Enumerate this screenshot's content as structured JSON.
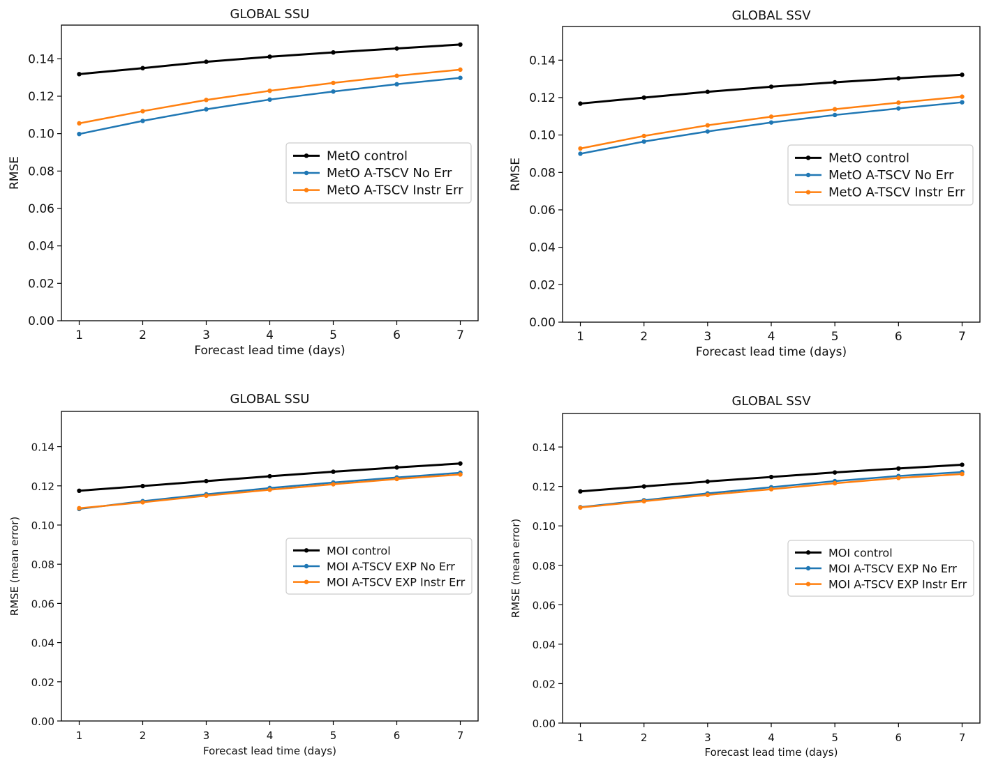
{
  "chart_data": [
    {
      "type": "line",
      "title": "GLOBAL SSU",
      "xlabel": "Forecast lead time (days)",
      "ylabel": "RMSE",
      "x": [
        1,
        2,
        3,
        4,
        5,
        6,
        7
      ],
      "xticks": [
        "1",
        "2",
        "3",
        "4",
        "5",
        "6",
        "7"
      ],
      "yticks": [
        "0.00",
        "0.02",
        "0.04",
        "0.06",
        "0.08",
        "0.10",
        "0.12",
        "0.14"
      ],
      "ylim": [
        0,
        0.158
      ],
      "legend_position": "center-right",
      "series": [
        {
          "name": "MetO control",
          "color": "#000000",
          "values": [
            0.1318,
            0.135,
            0.1384,
            0.1411,
            0.1434,
            0.1455,
            0.1476
          ]
        },
        {
          "name": "MetO A-TSCV No Err",
          "color": "#1f77b4",
          "values": [
            0.0998,
            0.1068,
            0.113,
            0.1182,
            0.1225,
            0.1264,
            0.1298
          ]
        },
        {
          "name": "MetO A-TSCV Instr Err",
          "color": "#ff7f0e",
          "values": [
            0.1055,
            0.112,
            0.118,
            0.1229,
            0.1271,
            0.1309,
            0.1342
          ]
        }
      ]
    },
    {
      "type": "line",
      "title": "GLOBAL SSV",
      "xlabel": "Forecast lead time (days)",
      "ylabel": "RMSE",
      "x": [
        1,
        2,
        3,
        4,
        5,
        6,
        7
      ],
      "xticks": [
        "1",
        "2",
        "3",
        "4",
        "5",
        "6",
        "7"
      ],
      "yticks": [
        "0.00",
        "0.02",
        "0.04",
        "0.06",
        "0.08",
        "0.10",
        "0.12",
        "0.14"
      ],
      "ylim": [
        0,
        0.158
      ],
      "legend_position": "center-right",
      "series": [
        {
          "name": "MetO control",
          "color": "#000000",
          "values": [
            0.1168,
            0.12,
            0.1231,
            0.1258,
            0.1282,
            0.1303,
            0.1322
          ]
        },
        {
          "name": "MetO A-TSCV No Err",
          "color": "#1f77b4",
          "values": [
            0.09,
            0.0965,
            0.1019,
            0.1067,
            0.1107,
            0.1142,
            0.1175
          ]
        },
        {
          "name": "MetO A-TSCV Instr Err",
          "color": "#ff7f0e",
          "values": [
            0.0928,
            0.0995,
            0.1052,
            0.1098,
            0.1138,
            0.1173,
            0.1205
          ]
        }
      ]
    },
    {
      "type": "line",
      "title": "GLOBAL SSU",
      "xlabel": "Forecast lead time (days)",
      "ylabel": "RMSE (mean error)",
      "x": [
        1,
        2,
        3,
        4,
        5,
        6,
        7
      ],
      "xticks": [
        "1",
        "2",
        "3",
        "4",
        "5",
        "6",
        "7"
      ],
      "yticks": [
        "0.00",
        "0.02",
        "0.04",
        "0.06",
        "0.08",
        "0.10",
        "0.12",
        "0.14"
      ],
      "ylim": [
        0,
        0.158
      ],
      "legend_position": "center-right",
      "series": [
        {
          "name": "MOI control",
          "color": "#000000",
          "values": [
            0.1175,
            0.1199,
            0.1224,
            0.1249,
            0.1272,
            0.1294,
            0.1314
          ]
        },
        {
          "name": "MOI A-TSCV EXP No Err",
          "color": "#1f77b4",
          "values": [
            0.1082,
            0.1122,
            0.1157,
            0.1189,
            0.1217,
            0.1243,
            0.1267
          ]
        },
        {
          "name": "MOI A-TSCV EXP Instr Err",
          "color": "#ff7f0e",
          "values": [
            0.1086,
            0.1116,
            0.115,
            0.118,
            0.1208,
            0.1235,
            0.1258
          ]
        }
      ]
    },
    {
      "type": "line",
      "title": "GLOBAL SSV",
      "xlabel": "Forecast lead time (days)",
      "ylabel": "RMSE (mean error)",
      "x": [
        1,
        2,
        3,
        4,
        5,
        6,
        7
      ],
      "xticks": [
        "1",
        "2",
        "3",
        "4",
        "5",
        "6",
        "7"
      ],
      "yticks": [
        "0.00",
        "0.02",
        "0.04",
        "0.06",
        "0.08",
        "0.10",
        "0.12",
        "0.14"
      ],
      "ylim": [
        0,
        0.157
      ],
      "legend_position": "center-right",
      "series": [
        {
          "name": "MOI control",
          "color": "#000000",
          "values": [
            0.1175,
            0.12,
            0.1225,
            0.1248,
            0.1271,
            0.1291,
            0.131
          ]
        },
        {
          "name": "MOI A-TSCV EXP No Err",
          "color": "#1f77b4",
          "values": [
            0.1095,
            0.113,
            0.1165,
            0.1196,
            0.1227,
            0.1253,
            0.1273
          ]
        },
        {
          "name": "MOI A-TSCV EXP Instr Err",
          "color": "#ff7f0e",
          "values": [
            0.1093,
            0.1125,
            0.1157,
            0.1186,
            0.1216,
            0.1243,
            0.1263
          ]
        }
      ]
    }
  ]
}
